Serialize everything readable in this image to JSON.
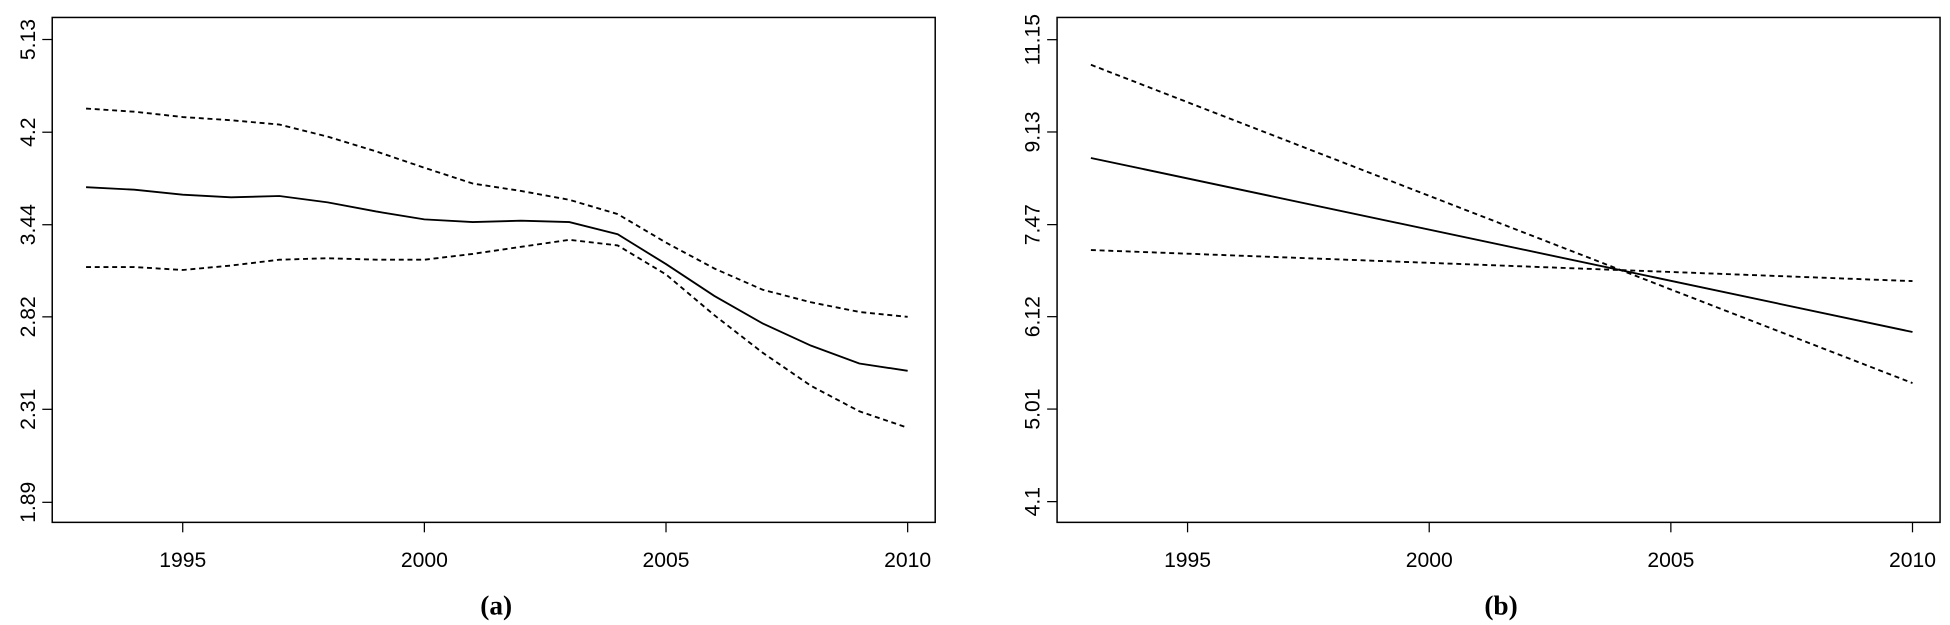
{
  "chart_data": [
    {
      "type": "line",
      "title": "(a)",
      "log_y": true,
      "x": [
        1993,
        1994,
        1995,
        1996,
        1997,
        1998,
        1999,
        2000,
        2001,
        2002,
        2003,
        2004,
        2005,
        2006,
        2007,
        2008,
        2009,
        2010
      ],
      "xlim": [
        1992.3,
        2010.57
      ],
      "xticks": [
        1995,
        2000,
        2005,
        2010
      ],
      "ylim": [
        1.81,
        5.38
      ],
      "yticks": [
        1.89,
        2.31,
        2.82,
        3.44,
        4.2,
        5.13
      ],
      "series": [
        {
          "color": "#000000",
          "linestyle": "solid",
          "values": [
            3.73,
            3.71,
            3.67,
            3.65,
            3.66,
            3.61,
            3.54,
            3.48,
            3.46,
            3.47,
            3.46,
            3.37,
            3.16,
            2.95,
            2.78,
            2.65,
            2.55,
            2.51
          ]
        },
        {
          "color": "#000000",
          "linestyle": "dashed",
          "values": [
            4.42,
            4.39,
            4.34,
            4.31,
            4.27,
            4.16,
            4.03,
            3.89,
            3.76,
            3.7,
            3.63,
            3.52,
            3.31,
            3.13,
            2.99,
            2.91,
            2.85,
            2.82
          ]
        },
        {
          "color": "#000000",
          "linestyle": "dashed",
          "values": [
            3.14,
            3.14,
            3.12,
            3.15,
            3.19,
            3.2,
            3.19,
            3.19,
            3.23,
            3.28,
            3.33,
            3.29,
            3.09,
            2.83,
            2.61,
            2.43,
            2.3,
            2.22
          ]
        }
      ]
    },
    {
      "type": "line",
      "title": "(b)",
      "log_y": true,
      "x": [
        1993,
        2010
      ],
      "xlim": [
        1992.3,
        2010.57
      ],
      "xticks": [
        1995,
        2000,
        2005,
        2010
      ],
      "ylim": [
        3.92,
        11.7
      ],
      "yticks": [
        4.1,
        5.01,
        6.12,
        7.47,
        9.13,
        11.15
      ],
      "series": [
        {
          "color": "#000000",
          "linestyle": "solid",
          "values": [
            8.63,
            5.92
          ]
        },
        {
          "color": "#000000",
          "linestyle": "dashed",
          "values": [
            10.56,
            5.3
          ]
        },
        {
          "color": "#000000",
          "linestyle": "dashed",
          "values": [
            7.07,
            6.61
          ]
        }
      ]
    }
  ]
}
